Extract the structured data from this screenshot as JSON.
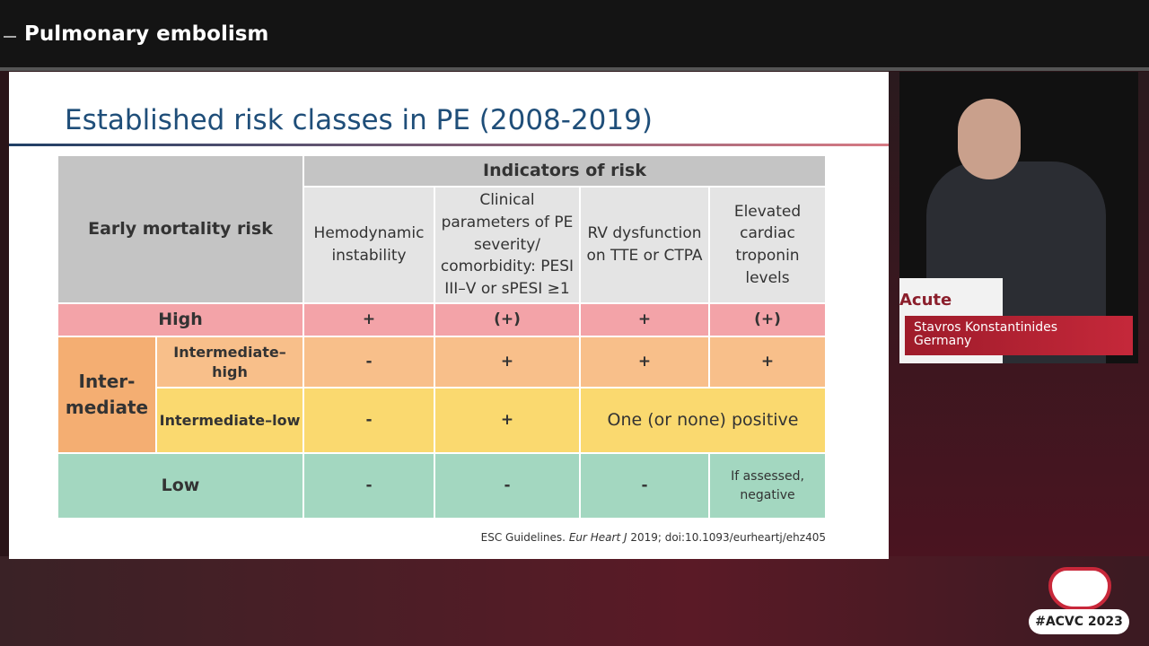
{
  "header": {
    "title": "Pulmonary embolism"
  },
  "slide": {
    "title": "Established risk classes in PE (2008-2019)",
    "table": {
      "risk_header": "Early mortality risk",
      "indicators_header": "Indicators of risk",
      "columns": [
        "Hemodynamic instability",
        "Clinical parameters of PE severity/ comorbidity: PESI III–V or sPESI ≥1",
        "RV dysfunction on TTE or CTPA",
        "Elevated cardiac troponin levels"
      ],
      "group": "Inter-\nmediate",
      "rows": [
        {
          "label": "High",
          "cells": [
            "+",
            "(+)",
            "+",
            "(+)"
          ]
        },
        {
          "label": "Intermediate–\nhigh",
          "cells": [
            "-",
            "+",
            "+",
            "+"
          ]
        },
        {
          "label": "Intermediate–low",
          "cells": [
            "-",
            "+",
            "One (or none) positive"
          ]
        },
        {
          "label": "Low",
          "cells": [
            "-",
            "-",
            "-",
            "If assessed,\nnegative"
          ]
        }
      ]
    },
    "citation": [
      "ESC Guidelines.",
      "Eur Heart J",
      "2019; doi:10.1093/eurheartj/ehz405"
    ]
  },
  "podium": "Acute",
  "speaker": {
    "name": "Stavros Konstantinides",
    "country": "Germany"
  },
  "hashtag": "#ACVC 2023"
}
